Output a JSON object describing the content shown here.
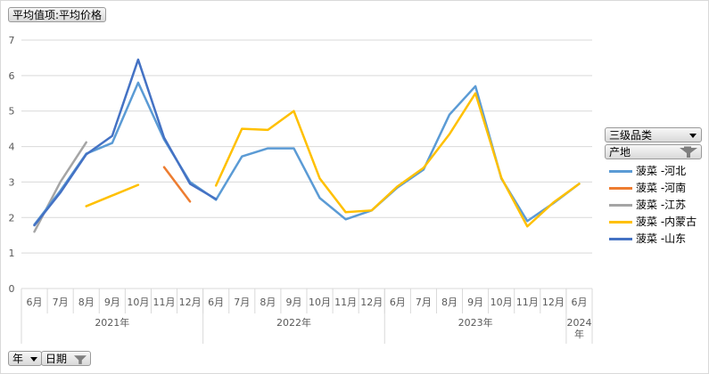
{
  "field_buttons": {
    "value_field": "平均值项:平均价格",
    "category_field": "三级品类",
    "series_field": "产地",
    "axis_field_year": "年",
    "axis_field_date": "日期"
  },
  "colors": {
    "菠菜 -河北": "#5b9bd5",
    "菠菜 -河南": "#ed7d31",
    "菠菜 -江苏": "#a5a5a5",
    "菠菜 -内蒙古": "#ffc000",
    "菠菜 -山东": "#4472c4"
  },
  "chart_data": {
    "type": "line",
    "ylim": [
      0,
      7
    ],
    "yticks": [
      0,
      1,
      2,
      3,
      4,
      5,
      6,
      7
    ],
    "grid": true,
    "legend_position": "right",
    "categories": [
      "6月",
      "7月",
      "8月",
      "9月",
      "10月",
      "11月",
      "12月",
      "6月",
      "7月",
      "8月",
      "9月",
      "10月",
      "11月",
      "12月",
      "6月",
      "7月",
      "8月",
      "9月",
      "10月",
      "11月",
      "12月",
      "6月"
    ],
    "year_groups": [
      {
        "label": "2021年",
        "start": 0,
        "end": 6
      },
      {
        "label": "2022年",
        "start": 7,
        "end": 13
      },
      {
        "label": "2023年",
        "start": 14,
        "end": 20
      },
      {
        "label": "2024年",
        "start": 21,
        "end": 21
      }
    ],
    "series": [
      {
        "name": "菠菜 -河北",
        "values": [
          1.8,
          2.75,
          3.8,
          4.1,
          5.8,
          4.2,
          3.0,
          2.5,
          3.72,
          3.95,
          3.95,
          2.55,
          1.95,
          2.2,
          2.85,
          3.35,
          4.9,
          5.7,
          3.1,
          1.9,
          2.4,
          2.95
        ]
      },
      {
        "name": "菠菜 -河南",
        "values": [
          null,
          null,
          null,
          null,
          null,
          3.42,
          2.45,
          null,
          null,
          null,
          null,
          null,
          null,
          null,
          null,
          null,
          null,
          null,
          null,
          null,
          null,
          null
        ]
      },
      {
        "name": "菠菜 -江苏",
        "values": [
          1.6,
          3.0,
          4.12,
          null,
          null,
          null,
          null,
          null,
          null,
          null,
          null,
          null,
          null,
          null,
          null,
          null,
          null,
          null,
          null,
          null,
          null,
          null
        ]
      },
      {
        "name": "菠菜 -内蒙古",
        "values": [
          null,
          null,
          2.32,
          2.62,
          2.92,
          null,
          null,
          2.9,
          4.5,
          4.47,
          5.0,
          3.1,
          2.15,
          2.2,
          2.88,
          3.4,
          4.35,
          5.5,
          3.12,
          1.75,
          2.42,
          2.95
        ]
      },
      {
        "name": "菠菜 -山东",
        "values": [
          1.78,
          2.7,
          3.78,
          4.3,
          6.45,
          4.25,
          2.95,
          2.52,
          null,
          null,
          null,
          null,
          null,
          null,
          null,
          null,
          null,
          null,
          null,
          null,
          null,
          null
        ]
      }
    ]
  }
}
